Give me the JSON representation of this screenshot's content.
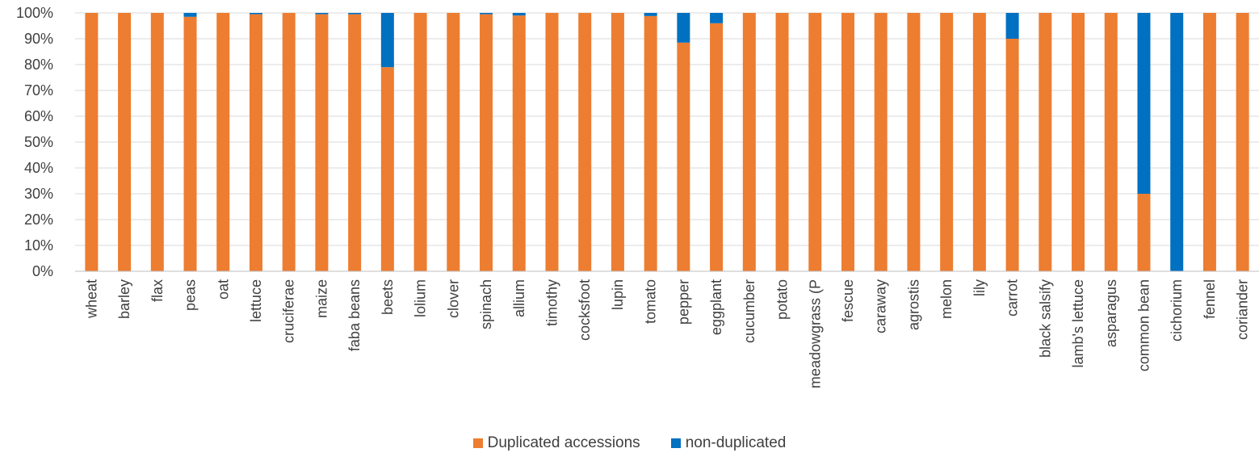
{
  "chart_data": {
    "type": "bar",
    "stacked": true,
    "percent_stacked": true,
    "categories": [
      "wheat",
      "barley",
      "flax",
      "peas",
      "oat",
      "lettuce",
      "cruciferae",
      "maize",
      "faba beans",
      "beets",
      "lolium",
      "clover",
      "spinach",
      "allium",
      "timothy",
      "cocksfoot",
      "lupin",
      "tomato",
      "pepper",
      "eggplant",
      "cucumber",
      "potato",
      "meadowgrass (P",
      "fescue",
      "caraway",
      "agrostis",
      "melon",
      "lily",
      "carrot",
      "black salsify",
      "lamb's lettuce",
      "asparagus",
      "common bean",
      "cichorium",
      "fennel",
      "coriander"
    ],
    "series": [
      {
        "name": "Duplicated accessions",
        "color": "#ED7D31",
        "values": [
          100,
          100,
          100,
          98.5,
          100,
          99.5,
          100,
          99.5,
          99.5,
          79,
          100,
          100,
          99.5,
          99,
          100,
          100,
          100,
          98.8,
          88.5,
          96,
          100,
          100,
          100,
          100,
          100,
          100,
          100,
          100,
          90,
          100,
          100,
          100,
          30,
          0,
          100,
          100
        ]
      },
      {
        "name": "non-duplicated",
        "color": "#0070C0",
        "values": [
          0,
          0,
          0,
          1.5,
          0,
          0.5,
          0,
          0.5,
          0.5,
          21,
          0,
          0,
          0.5,
          1,
          0,
          0,
          0,
          1.2,
          11.5,
          4,
          0,
          0,
          0,
          0,
          0,
          0,
          0,
          0,
          10,
          0,
          0,
          0,
          70,
          100,
          0,
          0
        ]
      }
    ],
    "y_ticks": [
      "0%",
      "10%",
      "20%",
      "30%",
      "40%",
      "50%",
      "60%",
      "70%",
      "80%",
      "90%",
      "100%"
    ],
    "ylim": [
      0,
      100
    ],
    "grid": true,
    "legend_position": "bottom"
  }
}
